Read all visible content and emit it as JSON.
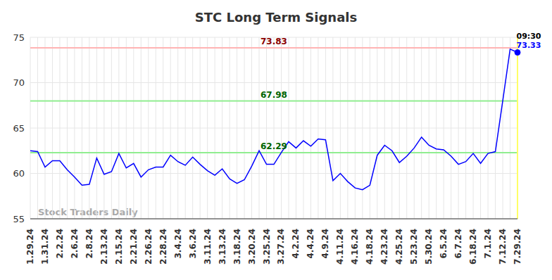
{
  "chart_data": {
    "type": "line",
    "title": "STC Long Term Signals",
    "watermark": "Stock Traders Daily",
    "categories": [
      "1.29.24",
      null,
      "1.31.24",
      null,
      "2.2.24",
      null,
      "2.6.24",
      null,
      "2.8.24",
      null,
      "2.13.24",
      null,
      "2.15.24",
      null,
      "2.21.24",
      null,
      "2.26.24",
      null,
      "2.28.24",
      null,
      "3.4.24",
      null,
      "3.6.24",
      null,
      "3.11.24",
      null,
      "3.13.24",
      null,
      "3.18.24",
      null,
      "3.20.24",
      null,
      "3.25.24",
      null,
      "3.27.24",
      null,
      "4.2.24",
      null,
      "4.4.24",
      null,
      "4.9.24",
      null,
      "4.11.24",
      null,
      "4.16.24",
      null,
      "4.18.24",
      null,
      "4.23.24",
      null,
      "4.25.24",
      null,
      "5.23.24",
      null,
      "5.30.24",
      null,
      "6.5.24",
      null,
      "6.7.24",
      null,
      "6.18.24",
      null,
      "7.1.24",
      null,
      "7.12.24",
      null,
      "7.29.24"
    ],
    "values": [
      62.5,
      62.4,
      60.7,
      61.4,
      61.4,
      60.4,
      59.6,
      58.7,
      58.8,
      61.7,
      59.9,
      60.2,
      62.2,
      60.6,
      61.1,
      59.6,
      60.4,
      60.7,
      60.7,
      62.0,
      61.3,
      60.9,
      61.8,
      61.0,
      60.3,
      59.8,
      60.5,
      59.4,
      58.9,
      59.3,
      60.8,
      62.5,
      61.0,
      61.0,
      62.3,
      63.5,
      62.8,
      63.6,
      63.0,
      63.8,
      63.7,
      59.2,
      60.0,
      59.1,
      58.4,
      58.2,
      58.7,
      62.0,
      63.1,
      62.5,
      61.2,
      61.9,
      62.8,
      64.0,
      63.1,
      62.7,
      62.6,
      61.9,
      61.0,
      61.3,
      62.2,
      61.1,
      62.2,
      62.4,
      68.0,
      73.7,
      73.33
    ],
    "color": "#0000ff",
    "ylim": [
      55,
      75
    ],
    "yticks": [
      55,
      60,
      65,
      70,
      75
    ],
    "grid": true,
    "reference_lines": [
      {
        "value": 73.83,
        "color": "#ffb3b3",
        "label_color": "#8b0000"
      },
      {
        "value": 67.98,
        "color": "#90ee90",
        "label_color": "#006400"
      },
      {
        "value": 62.29,
        "color": "#90ee90",
        "label_color": "#006400"
      }
    ],
    "annotation": {
      "time": "09:30",
      "value": 73.33
    }
  }
}
